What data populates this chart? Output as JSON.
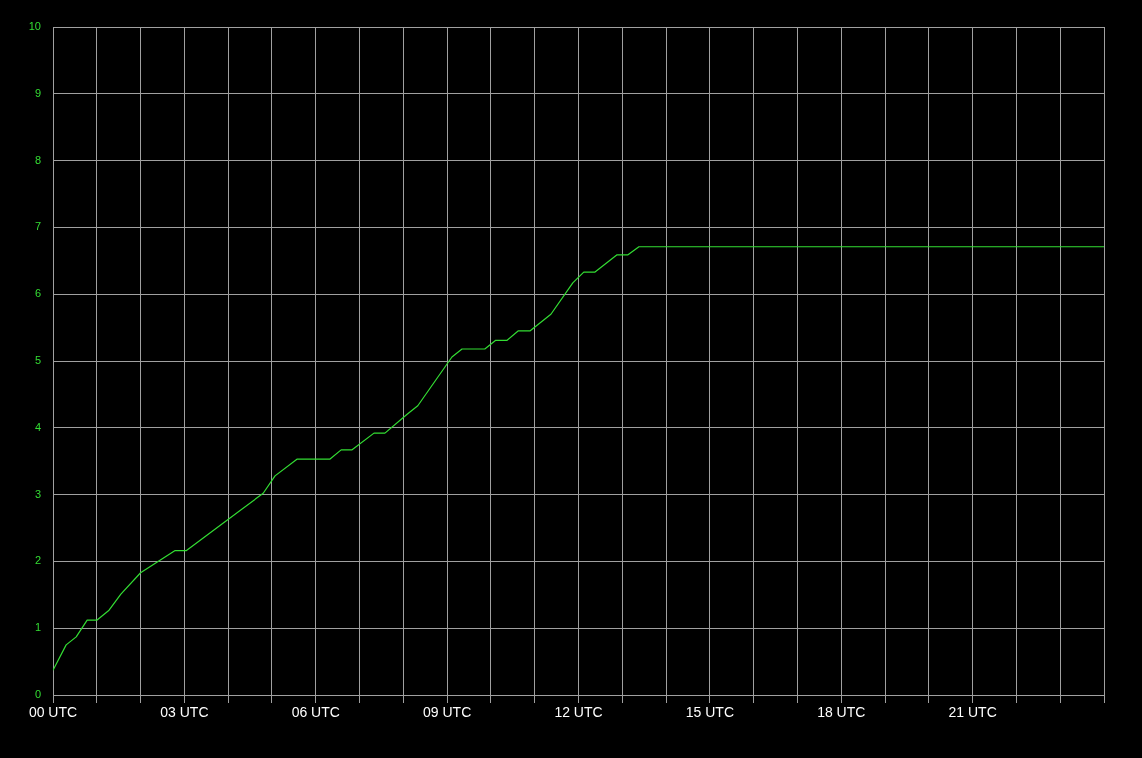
{
  "chart_data": {
    "type": "line",
    "series": [
      {
        "color": "#33dd33",
        "x": [
          0,
          0.3,
          0.53,
          0.78,
          1.0,
          1.28,
          1.55,
          2.0,
          2.78,
          3.04,
          4.8,
          5.07,
          5.57,
          6.32,
          6.58,
          6.83,
          7.33,
          7.58,
          8.08,
          8.33,
          9.11,
          9.34,
          9.86,
          10.11,
          10.37,
          10.62,
          10.89,
          11.37,
          11.87,
          12.12,
          12.37,
          12.88,
          13.13,
          13.38,
          24
        ],
        "values": [
          0.37,
          0.75,
          0.87,
          1.12,
          1.12,
          1.27,
          1.51,
          1.83,
          2.16,
          2.16,
          3.02,
          3.28,
          3.53,
          3.53,
          3.67,
          3.67,
          3.92,
          3.92,
          4.2,
          4.33,
          5.06,
          5.18,
          5.18,
          5.31,
          5.31,
          5.45,
          5.45,
          5.7,
          6.17,
          6.33,
          6.33,
          6.59,
          6.59,
          6.71,
          6.71
        ]
      }
    ],
    "xlim": [
      0,
      24
    ],
    "xticks": [
      {
        "value": 0,
        "label": "00 UTC"
      },
      {
        "value": 1,
        "label": null
      },
      {
        "value": 2,
        "label": null
      },
      {
        "value": 3,
        "label": "03 UTC"
      },
      {
        "value": 4,
        "label": null
      },
      {
        "value": 5,
        "label": null
      },
      {
        "value": 6,
        "label": "06 UTC"
      },
      {
        "value": 7,
        "label": null
      },
      {
        "value": 8,
        "label": null
      },
      {
        "value": 9,
        "label": "09 UTC"
      },
      {
        "value": 10,
        "label": null
      },
      {
        "value": 11,
        "label": null
      },
      {
        "value": 12,
        "label": "12 UTC"
      },
      {
        "value": 13,
        "label": null
      },
      {
        "value": 14,
        "label": null
      },
      {
        "value": 15,
        "label": "15 UTC"
      },
      {
        "value": 16,
        "label": null
      },
      {
        "value": 17,
        "label": null
      },
      {
        "value": 18,
        "label": "18 UTC"
      },
      {
        "value": 19,
        "label": null
      },
      {
        "value": 20,
        "label": null
      },
      {
        "value": 21,
        "label": "21 UTC"
      },
      {
        "value": 22,
        "label": null
      },
      {
        "value": 23,
        "label": null
      },
      {
        "value": 24,
        "label": null
      }
    ],
    "ylim": [
      0,
      10
    ],
    "yticks": [
      0,
      1,
      2,
      3,
      4,
      5,
      6,
      7,
      8,
      9,
      10
    ],
    "grid": true,
    "legend": false,
    "marker": "none",
    "line_style": "solid"
  }
}
